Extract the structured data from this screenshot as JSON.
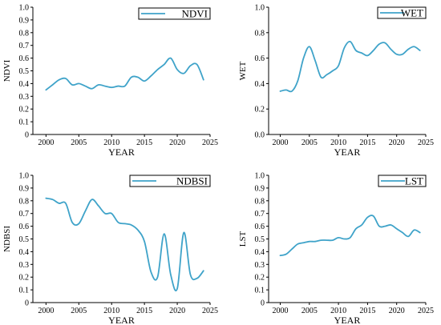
{
  "chart_data": [
    {
      "type": "line",
      "title": "",
      "xlabel": "YEAR",
      "ylabel": "NDVI",
      "xlim": [
        1998,
        2025
      ],
      "ylim": [
        0,
        1.0
      ],
      "xticks": [
        "2000",
        "2005",
        "2010",
        "2015",
        "2020",
        "2025"
      ],
      "yticks": [
        "0",
        "0.1",
        "0.2",
        "0.3",
        "0.4",
        "0.5",
        "0.6",
        "0.7",
        "0.8",
        "0.9",
        "1.0"
      ],
      "legend_position": "top-right",
      "series": [
        {
          "name": "NDVI",
          "color": "#3fa3c9",
          "x": [
            2000,
            2001,
            2002,
            2003,
            2004,
            2005,
            2006,
            2007,
            2008,
            2009,
            2010,
            2011,
            2012,
            2013,
            2014,
            2015,
            2016,
            2017,
            2018,
            2019,
            2020,
            2021,
            2022,
            2023,
            2024
          ],
          "y": [
            0.35,
            0.39,
            0.43,
            0.44,
            0.39,
            0.4,
            0.38,
            0.36,
            0.39,
            0.38,
            0.37,
            0.38,
            0.38,
            0.45,
            0.45,
            0.42,
            0.46,
            0.51,
            0.55,
            0.6,
            0.51,
            0.48,
            0.54,
            0.55,
            0.43
          ]
        }
      ]
    },
    {
      "type": "line",
      "title": "",
      "xlabel": "YEAR",
      "ylabel": "WET",
      "xlim": [
        1998,
        2025
      ],
      "ylim": [
        0,
        1.0
      ],
      "xticks": [
        "2000",
        "2005",
        "2010",
        "2015",
        "2020",
        "2025"
      ],
      "yticks": [
        "0.0",
        "0.2",
        "0.4",
        "0.6",
        "0.8",
        "1.0"
      ],
      "legend_position": "top-right",
      "series": [
        {
          "name": "WET",
          "color": "#3fa3c9",
          "x": [
            2000,
            2001,
            2002,
            2003,
            2004,
            2005,
            2006,
            2007,
            2008,
            2009,
            2010,
            2011,
            2012,
            2013,
            2014,
            2015,
            2016,
            2017,
            2018,
            2019,
            2020,
            2021,
            2022,
            2023,
            2024
          ],
          "y": [
            0.34,
            0.35,
            0.34,
            0.42,
            0.6,
            0.69,
            0.58,
            0.45,
            0.47,
            0.5,
            0.54,
            0.68,
            0.73,
            0.66,
            0.64,
            0.62,
            0.66,
            0.71,
            0.72,
            0.67,
            0.63,
            0.63,
            0.67,
            0.69,
            0.66
          ]
        }
      ]
    },
    {
      "type": "line",
      "title": "",
      "xlabel": "YEAR",
      "ylabel": "NDBSI",
      "xlim": [
        1998,
        2025
      ],
      "ylim": [
        0,
        1.0
      ],
      "xticks": [
        "2000",
        "2005",
        "2010",
        "2015",
        "2020",
        "2025"
      ],
      "yticks": [
        "0",
        "0.1",
        "0.2",
        "0.3",
        "0.4",
        "0.5",
        "0.6",
        "0.7",
        "0.8",
        "0.9",
        "1.0"
      ],
      "legend_position": "top-right",
      "series": [
        {
          "name": "NDBSI",
          "color": "#3fa3c9",
          "x": [
            2000,
            2001,
            2002,
            2003,
            2004,
            2005,
            2006,
            2007,
            2008,
            2009,
            2010,
            2011,
            2012,
            2013,
            2014,
            2015,
            2016,
            2017,
            2018,
            2019,
            2020,
            2021,
            2022,
            2023,
            2024
          ],
          "y": [
            0.82,
            0.81,
            0.78,
            0.78,
            0.63,
            0.62,
            0.72,
            0.81,
            0.76,
            0.7,
            0.7,
            0.63,
            0.62,
            0.61,
            0.57,
            0.48,
            0.24,
            0.2,
            0.54,
            0.22,
            0.11,
            0.55,
            0.22,
            0.19,
            0.25
          ]
        }
      ]
    },
    {
      "type": "line",
      "title": "",
      "xlabel": "YEAR",
      "ylabel": "LST",
      "xlim": [
        1998,
        2025
      ],
      "ylim": [
        0,
        1.0
      ],
      "xticks": [
        "2000",
        "2005",
        "2010",
        "2015",
        "2020",
        "2025"
      ],
      "yticks": [
        "0",
        "0.1",
        "0.2",
        "0.3",
        "0.4",
        "0.5",
        "0.6",
        "0.7",
        "0.8",
        "0.9",
        "1.0"
      ],
      "legend_position": "top-right",
      "series": [
        {
          "name": "LST",
          "color": "#3fa3c9",
          "x": [
            2000,
            2001,
            2002,
            2003,
            2004,
            2005,
            2006,
            2007,
            2008,
            2009,
            2010,
            2011,
            2012,
            2013,
            2014,
            2015,
            2016,
            2017,
            2018,
            2019,
            2020,
            2021,
            2022,
            2023,
            2024
          ],
          "y": [
            0.37,
            0.38,
            0.42,
            0.46,
            0.47,
            0.48,
            0.48,
            0.49,
            0.49,
            0.49,
            0.51,
            0.5,
            0.51,
            0.58,
            0.61,
            0.67,
            0.68,
            0.6,
            0.6,
            0.61,
            0.58,
            0.55,
            0.52,
            0.57,
            0.55
          ]
        }
      ]
    }
  ]
}
